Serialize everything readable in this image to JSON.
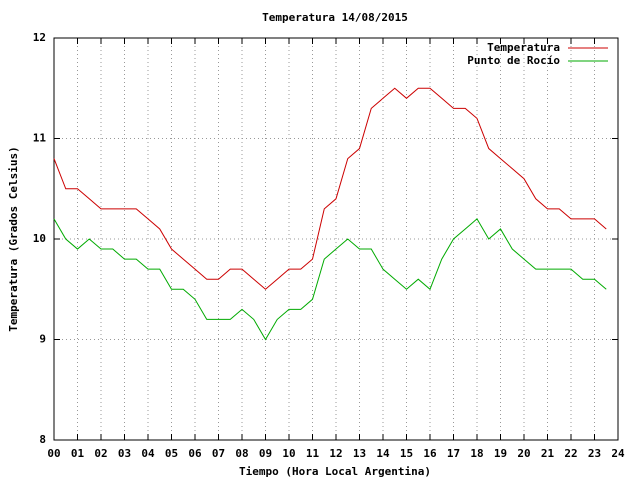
{
  "chart_data": {
    "type": "line",
    "title": "Temperatura 14/08/2015",
    "x_label": "Tiempo (Hora Local Argentina)",
    "y_label": "Temperatura (Grados Celsius)",
    "x": [
      0,
      0.5,
      1,
      1.5,
      2,
      2.5,
      3,
      3.5,
      4,
      4.5,
      5,
      5.5,
      6,
      6.5,
      7,
      7.5,
      8,
      8.5,
      9,
      9.5,
      10,
      10.5,
      11,
      11.5,
      12,
      12.5,
      13,
      13.5,
      14,
      14.5,
      15,
      15.5,
      16,
      16.5,
      17,
      17.5,
      18,
      18.5,
      19,
      19.5,
      20,
      20.5,
      21,
      21.5,
      22,
      22.5,
      23,
      23.5
    ],
    "series": [
      {
        "name": "Temperatura",
        "color": "#cc0000",
        "values": [
          10.8,
          10.5,
          10.5,
          10.4,
          10.3,
          10.3,
          10.3,
          10.3,
          10.2,
          10.1,
          9.9,
          9.8,
          9.7,
          9.6,
          9.6,
          9.7,
          9.7,
          9.6,
          9.5,
          9.6,
          9.7,
          9.7,
          9.8,
          10.3,
          10.4,
          10.8,
          10.9,
          11.3,
          11.4,
          11.5,
          11.4,
          11.5,
          11.5,
          11.4,
          11.3,
          11.3,
          11.2,
          10.9,
          10.8,
          10.7,
          10.6,
          10.4,
          10.3,
          10.3,
          10.2,
          10.2,
          10.2,
          10.1
        ]
      },
      {
        "name": "Punto de Rocío",
        "color": "#00aa00",
        "values": [
          10.2,
          10.0,
          9.9,
          10.0,
          9.9,
          9.9,
          9.8,
          9.8,
          9.7,
          9.7,
          9.5,
          9.5,
          9.4,
          9.2,
          9.2,
          9.2,
          9.3,
          9.2,
          9.0,
          9.2,
          9.3,
          9.3,
          9.4,
          9.8,
          9.9,
          10.0,
          9.9,
          9.9,
          9.7,
          9.6,
          9.5,
          9.6,
          9.5,
          9.8,
          10.0,
          10.1,
          10.2,
          10.0,
          10.1,
          9.9,
          9.8,
          9.7,
          9.7,
          9.7,
          9.7,
          9.6,
          9.6,
          9.5
        ]
      }
    ],
    "xlim": [
      0,
      24
    ],
    "xticks": [
      {
        "value": 0,
        "label": "00"
      },
      {
        "value": 1,
        "label": "01"
      },
      {
        "value": 2,
        "label": "02"
      },
      {
        "value": 3,
        "label": "03"
      },
      {
        "value": 4,
        "label": "04"
      },
      {
        "value": 5,
        "label": "05"
      },
      {
        "value": 6,
        "label": "06"
      },
      {
        "value": 7,
        "label": "07"
      },
      {
        "value": 8,
        "label": "08"
      },
      {
        "value": 9,
        "label": "09"
      },
      10,
      11,
      12,
      13,
      14,
      15,
      16,
      17,
      18,
      19,
      20,
      21,
      22,
      23,
      24
    ],
    "ylim": [
      8,
      12
    ],
    "yticks": [
      8,
      9,
      10,
      11,
      12
    ],
    "grid": true,
    "legend": "top-right"
  }
}
